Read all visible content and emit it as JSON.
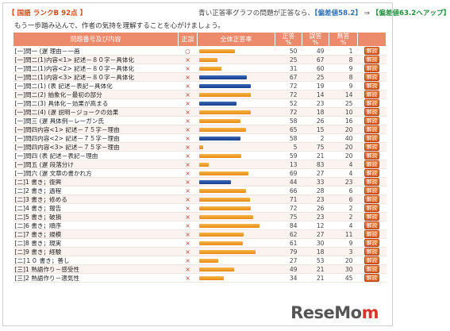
{
  "header": {
    "tag": "【 国語  ランクB  92点 】",
    "note_prefix": "青い正答率グラフの問題が正答なら、",
    "from_label": "【偏差値58.2】",
    "arrow": " ⇒ ",
    "to_label": "【偏差値63.2へアップ】"
  },
  "subheading": "もう一歩踏み込んで、作者の気持を理解することを心がけましょう。",
  "columns": {
    "question": "問題番号及び内容",
    "correct": "正誤",
    "rate_graph": "全体正答率",
    "correct_pct": "正答\n%",
    "wrong_pct": "誤答\n%",
    "blank_pct": "無答\n%"
  },
  "button_label": "解説",
  "rows": [
    {
      "q": "[一]問一      (遅      理由－一画",
      "mark": "○",
      "rate": 50,
      "blue": false,
      "correct": "50",
      "wrong": "49",
      "blank": "1"
    },
    {
      "q": "[一]問二(1)内容<1>  記述－８０字－具体化",
      "mark": "×",
      "rate": 25,
      "blue": false,
      "correct": "25",
      "wrong": "67",
      "blank": "8"
    },
    {
      "q": "[一]問二(1)内容<2>  記述－８０字－具体化",
      "mark": "×",
      "rate": 31,
      "blue": false,
      "correct": "31",
      "wrong": "60",
      "blank": "9"
    },
    {
      "q": "[一]問二(1)内容<3>  記述－８０字－具体化",
      "mark": "×",
      "rate": 67,
      "blue": true,
      "correct": "67",
      "wrong": "25",
      "blank": "8"
    },
    {
      "q": "[一]問二(1)      (表  記述－表記－具体化",
      "mark": "×",
      "rate": 72,
      "blue": true,
      "correct": "72",
      "wrong": "19",
      "blank": "9"
    },
    {
      "q": "[一]問二(2)          抽象化－最初の部分",
      "mark": "×",
      "rate": 72,
      "blue": false,
      "correct": "72",
      "wrong": "14",
      "blank": "14"
    },
    {
      "q": "[一]問二(3)          具体化－効果が高まる",
      "mark": "×",
      "rate": 52,
      "blue": true,
      "correct": "52",
      "wrong": "23",
      "blank": "25"
    },
    {
      "q": "[一]問二(4)      (遅  説明－ジョークの効果",
      "mark": "×",
      "rate": 72,
      "blue": false,
      "correct": "72",
      "wrong": "18",
      "blank": "10"
    },
    {
      "q": "[一]問三      (遅      具体例－レーガン氏",
      "mark": "×",
      "rate": 58,
      "blue": false,
      "correct": "58",
      "wrong": "26",
      "blank": "16"
    },
    {
      "q": "[一]問四内容<1>  記述－７５字－理由",
      "mark": "×",
      "rate": 65,
      "blue": false,
      "correct": "65",
      "wrong": "15",
      "blank": "20"
    },
    {
      "q": "[一]問四内容<2>  記述－７５字－理由",
      "mark": "×",
      "rate": 58,
      "blue": true,
      "correct": "58",
      "wrong": "2",
      "blank": "40"
    },
    {
      "q": "[一]問四内容<3>  記述－７５字－理由",
      "mark": "×",
      "rate": 5,
      "blue": false,
      "correct": "5",
      "wrong": "75",
      "blank": "20"
    },
    {
      "q": "[一]問四      (表  記述－表記－理由",
      "mark": "×",
      "rate": 59,
      "blue": false,
      "correct": "59",
      "wrong": "21",
      "blank": "20"
    },
    {
      "q": "[一]問五      (遅  段落分け",
      "mark": "×",
      "rate": 13,
      "blue": false,
      "correct": "13",
      "wrong": "83",
      "blank": "4"
    },
    {
      "q": "[一]問六      (遅  文章の書かれ方",
      "mark": "×",
      "rate": 69,
      "blue": false,
      "correct": "69",
      "wrong": "27",
      "blank": "4"
    },
    {
      "q": "[二]1          書き；復興",
      "mark": "×",
      "rate": 44,
      "blue": true,
      "correct": "44",
      "wrong": "33",
      "blank": "23"
    },
    {
      "q": "[二]2          書き；過程",
      "mark": "×",
      "rate": 66,
      "blue": false,
      "correct": "66",
      "wrong": "28",
      "blank": "6"
    },
    {
      "q": "[二]3          書き；修める",
      "mark": "×",
      "rate": 71,
      "blue": false,
      "correct": "71",
      "wrong": "23",
      "blank": "6"
    },
    {
      "q": "[二]4          書き；報告",
      "mark": "×",
      "rate": 72,
      "blue": false,
      "correct": "72",
      "wrong": "26",
      "blank": "2"
    },
    {
      "q": "[二]5          書き；破損",
      "mark": "×",
      "rate": 75,
      "blue": false,
      "correct": "75",
      "wrong": "23",
      "blank": "2"
    },
    {
      "q": "[二]6          書き；順序",
      "mark": "×",
      "rate": 84,
      "blue": false,
      "correct": "84",
      "wrong": "12",
      "blank": "4"
    },
    {
      "q": "[二]7          書き；規模",
      "mark": "×",
      "rate": 62,
      "blue": false,
      "correct": "62",
      "wrong": "27",
      "blank": "11"
    },
    {
      "q": "[二]8          書き；現実",
      "mark": "×",
      "rate": 61,
      "blue": false,
      "correct": "61",
      "wrong": "30",
      "blank": "9"
    },
    {
      "q": "[二]9          書き；経験",
      "mark": "×",
      "rate": 79,
      "blue": false,
      "correct": "79",
      "wrong": "18",
      "blank": "3"
    },
    {
      "q": "[二]１０        書き；善し",
      "mark": "×",
      "rate": 27,
      "blue": false,
      "correct": "27",
      "wrong": "53",
      "blank": "20"
    },
    {
      "q": "[三]1          熟語作り－感受性",
      "mark": "×",
      "rate": 49,
      "blue": false,
      "correct": "49",
      "wrong": "21",
      "blank": "30"
    },
    {
      "q": "[三]2          熟語作り－適気性",
      "mark": "×",
      "rate": 34,
      "blue": false,
      "correct": "34",
      "wrong": "21",
      "blank": "45"
    }
  ],
  "logo": {
    "main": "ReseMo",
    "accent": "m"
  }
}
